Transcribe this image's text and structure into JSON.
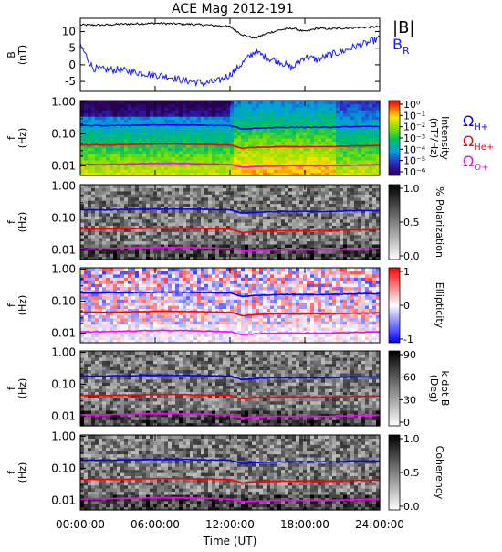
{
  "title": "ACE Mag 2012-191",
  "colors": {
    "b_total": "#000000",
    "b_r": "#1a1aff",
    "h_plus": "#0000ff",
    "he_plus": "#ff0000",
    "o_plus": "#ff00ff"
  },
  "chart_data": [
    {
      "type": "line",
      "panel": "magnetic field",
      "ylabel_line1": "B",
      "ylabel_line2": "(nT)",
      "ylim": [
        -8,
        14
      ],
      "yticks": [
        10,
        5,
        0,
        -5
      ],
      "ytick_labels": [
        "10",
        "5",
        "0",
        "-5"
      ],
      "x": [
        0,
        1,
        2,
        3,
        4,
        5,
        6,
        7,
        8,
        9,
        10,
        11,
        12,
        13,
        14,
        15,
        16,
        17,
        18,
        19,
        20,
        21,
        22,
        23,
        24
      ],
      "series": [
        {
          "name": "|B|",
          "color_key": "b_total",
          "values": [
            12,
            12,
            12,
            12.2,
            12.3,
            12.4,
            12.5,
            12.4,
            12.3,
            12.2,
            12.0,
            11.8,
            11.5,
            9.0,
            8.0,
            9.5,
            10.5,
            11.0,
            10.0,
            11.0,
            10.8,
            11.0,
            11.2,
            11.3,
            11.5
          ]
        },
        {
          "name": "B",
          "name_subscript": "R",
          "color_key": "b_r",
          "values": [
            6.0,
            -1.0,
            -1.5,
            -1.5,
            -2.0,
            -2.5,
            -3.0,
            -3.5,
            -4.5,
            -5.0,
            -5.5,
            -5.0,
            -3.0,
            0.5,
            4.0,
            2.0,
            1.0,
            -1.0,
            2.5,
            1.5,
            3.0,
            4.0,
            5.5,
            6.5,
            8.0
          ]
        }
      ]
    },
    {
      "type": "heatmap",
      "panel": "power spectrum",
      "ylabel_line1": "f",
      "ylabel_line2": "(Hz)",
      "yscale": "log",
      "ylim": [
        0.005,
        1.1
      ],
      "yticks": [
        1.0,
        0.1,
        0.01
      ],
      "ytick_labels": [
        "1.00",
        "0.10",
        "0.01"
      ],
      "colorbar": {
        "label_line1": "Intensity",
        "label_line2": "(nT²/Hz)",
        "scale": "rainbow",
        "tick_labels": [
          "10⁰",
          "10⁻¹",
          "10⁻²",
          "10⁻³",
          "10⁻⁴",
          "10⁻⁵",
          "10⁻⁶"
        ]
      },
      "gyrofrequency_legend": [
        {
          "symbol": "Ω",
          "subscript": "H+",
          "color_key": "h_plus"
        },
        {
          "symbol": "Ω",
          "subscript": "He+",
          "color_key": "he_plus"
        },
        {
          "symbol": "Ω",
          "subscript": "O+",
          "color_key": "o_plus"
        }
      ]
    },
    {
      "type": "heatmap",
      "panel": "polarization",
      "ylabel_line1": "f",
      "ylabel_line2": "(Hz)",
      "yscale": "log",
      "ylim": [
        0.005,
        1.1
      ],
      "yticks": [
        1.0,
        0.1,
        0.01
      ],
      "ytick_labels": [
        "1.00",
        "0.10",
        "0.01"
      ],
      "colorbar": {
        "label_line1": "% Polarization",
        "label_line2": "",
        "scale": "grayscale",
        "tick_labels": [
          "1.0",
          "0.5",
          "0.0"
        ]
      }
    },
    {
      "type": "heatmap",
      "panel": "ellipticity",
      "ylabel_line1": "f",
      "ylabel_line2": "(Hz)",
      "yscale": "log",
      "ylim": [
        0.005,
        1.1
      ],
      "yticks": [
        1.0,
        0.1,
        0.01
      ],
      "ytick_labels": [
        "1.00",
        "0.10",
        "0.01"
      ],
      "colorbar": {
        "label_line1": "Ellipticity",
        "label_line2": "",
        "scale": "red-white-blue",
        "tick_labels": [
          "1",
          "0",
          "-1"
        ]
      }
    },
    {
      "type": "heatmap",
      "panel": "wave normal angle",
      "ylabel_line1": "f",
      "ylabel_line2": "(Hz)",
      "yscale": "log",
      "ylim": [
        0.005,
        1.1
      ],
      "yticks": [
        1.0,
        0.1,
        0.01
      ],
      "ytick_labels": [
        "1.00",
        "0.10",
        "0.01"
      ],
      "colorbar": {
        "label_line1": "k dot B",
        "label_line2": "(Deg)",
        "scale": "grayscale",
        "tick_labels": [
          "90",
          "60",
          "30",
          "0"
        ]
      }
    },
    {
      "type": "heatmap",
      "panel": "coherency",
      "ylabel_line1": "f",
      "ylabel_line2": "(Hz)",
      "yscale": "log",
      "ylim": [
        0.005,
        1.1
      ],
      "yticks": [
        1.0,
        0.1,
        0.01
      ],
      "ytick_labels": [
        "1.00",
        "0.10",
        "0.01"
      ],
      "colorbar": {
        "label_line1": "Coherency",
        "label_line2": "",
        "scale": "grayscale",
        "tick_labels": [
          "1.0",
          "0.5",
          "0.0"
        ]
      }
    }
  ],
  "gyrofrequencies": {
    "x": [
      0,
      2,
      4,
      6,
      8,
      10,
      12,
      13,
      14,
      16,
      18,
      20,
      22,
      24
    ],
    "h_plus": [
      0.18,
      0.18,
      0.185,
      0.19,
      0.19,
      0.185,
      0.18,
      0.14,
      0.15,
      0.16,
      0.16,
      0.16,
      0.17,
      0.17
    ],
    "he_plus": [
      0.045,
      0.045,
      0.046,
      0.048,
      0.048,
      0.046,
      0.045,
      0.035,
      0.038,
      0.04,
      0.04,
      0.04,
      0.042,
      0.043
    ],
    "o_plus": [
      0.011,
      0.011,
      0.0115,
      0.012,
      0.012,
      0.0115,
      0.011,
      0.009,
      0.0095,
      0.01,
      0.01,
      0.01,
      0.0105,
      0.011
    ]
  },
  "x_axis": {
    "label": "Time (UT)",
    "range": [
      0,
      24
    ],
    "ticks": [
      0,
      6,
      12,
      18,
      24
    ],
    "tick_labels": [
      "00:00:00",
      "06:00:00",
      "12:00:00",
      "18:00:00",
      "24:00:00"
    ]
  }
}
